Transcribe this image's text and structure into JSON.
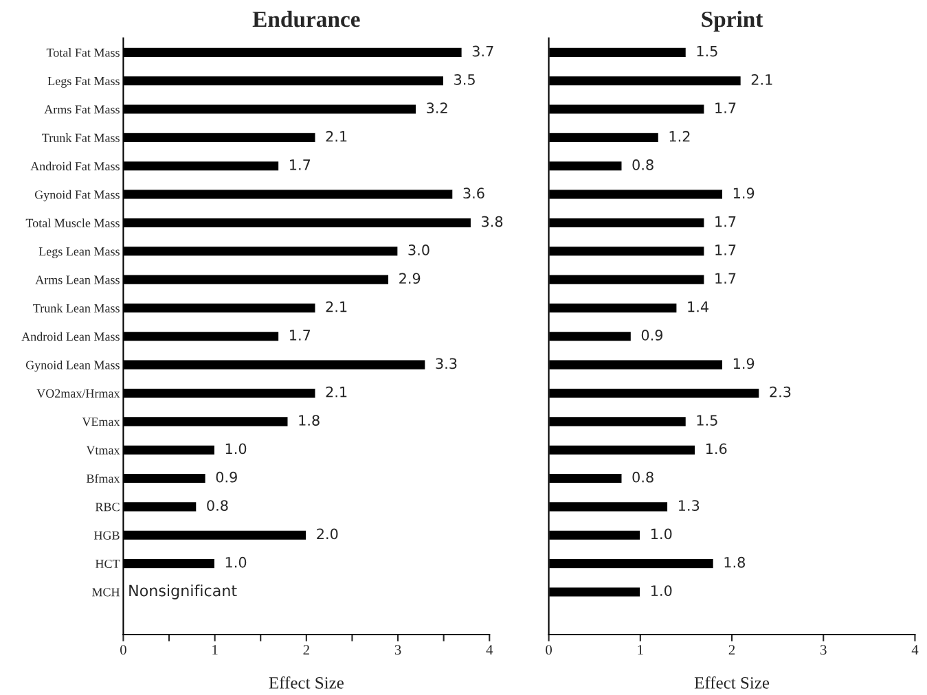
{
  "chart_data": [
    {
      "type": "bar",
      "title": "Endurance",
      "xlabel": "Effect Size",
      "orientation": "horizontal",
      "categories": [
        "Total Fat Mass",
        "Legs Fat Mass",
        "Arms Fat Mass",
        "Trunk Fat Mass",
        "Android Fat Mass",
        "Gynoid Fat Mass",
        "Total Muscle Mass",
        "Legs Lean Mass",
        "Arms Lean Mass",
        "Trunk Lean Mass",
        "Android Lean Mass",
        "Gynoid Lean Mass",
        "VO2max/Hrmax",
        "VEmax",
        "Vtmax",
        "Bfmax",
        "RBC",
        "HGB",
        "HCT",
        "MCH"
      ],
      "values": [
        3.7,
        3.5,
        3.2,
        2.1,
        1.7,
        3.6,
        3.8,
        3.0,
        2.9,
        2.1,
        1.7,
        3.3,
        2.1,
        1.8,
        1.0,
        0.9,
        0.8,
        2.0,
        1.0,
        null
      ],
      "value_labels": [
        "3.7",
        "3.5",
        "3.2",
        "2.1",
        "1.7",
        "3.6",
        "3.8",
        "3.0",
        "2.9",
        "2.1",
        "1.7",
        "3.3",
        "2.1",
        "1.8",
        "1.0",
        "0.9",
        "0.8",
        "2.0",
        "1.0",
        null
      ],
      "color": "#000000",
      "xlim": [
        0,
        4
      ],
      "xticks": [
        0,
        {
          "value": 0.5,
          "label": null
        },
        1,
        {
          "value": 1.5,
          "label": null
        },
        2,
        {
          "value": 2.5,
          "label": null
        },
        3,
        {
          "value": 3.5,
          "label": null
        },
        4
      ],
      "annotations": [
        "Nonsignificant"
      ]
    },
    {
      "type": "bar",
      "title": "Sprint",
      "xlabel": "Effect Size",
      "orientation": "horizontal",
      "categories": [
        null,
        null,
        null,
        null,
        null,
        null,
        null,
        null,
        null,
        null,
        null,
        null,
        null,
        null,
        null,
        null,
        null,
        null,
        null,
        null
      ],
      "values": [
        1.5,
        2.1,
        1.7,
        1.2,
        0.8,
        1.9,
        1.7,
        1.7,
        1.7,
        1.4,
        0.9,
        1.9,
        2.3,
        1.5,
        1.6,
        0.8,
        1.3,
        1.0,
        1.8,
        1.0
      ],
      "value_labels": [
        "1.5",
        "2.1",
        "1.7",
        "1.2",
        "0.8",
        "1.9",
        "1.7",
        "1.7",
        "1.7",
        "1.4",
        "0.9",
        "1.9",
        "2.3",
        "1.5",
        "1.6",
        "0.8",
        "1.3",
        "1.0",
        "1.8",
        "1.0"
      ],
      "color": "#000000",
      "xlim": [
        0,
        4
      ],
      "xticks": [
        0,
        1,
        2,
        3,
        4
      ],
      "tick_labels": "x"
    }
  ]
}
